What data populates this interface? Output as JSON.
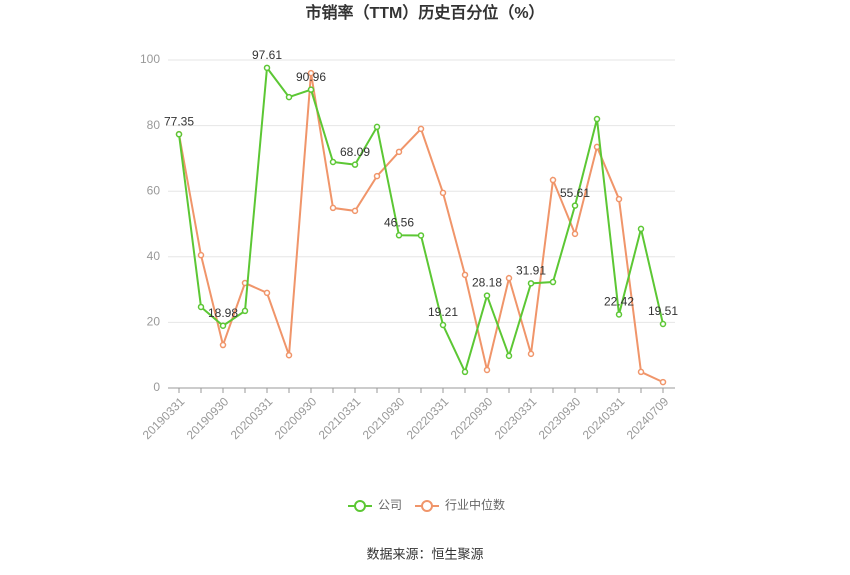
{
  "chart_data": {
    "type": "line",
    "title": "市销率（TTM）历史百分位（%）",
    "categories": [
      "20190331",
      null,
      "20190930",
      null,
      "20200331",
      null,
      "20200930",
      null,
      "20210331",
      null,
      "20210930",
      null,
      "20220331",
      null,
      "20220930",
      null,
      "20230331",
      null,
      "20230930",
      null,
      "20240331",
      null,
      "20240709"
    ],
    "series": [
      {
        "name": "公司",
        "color": "#5cc734",
        "values": [
          77.35,
          24.7,
          18.98,
          23.5,
          97.61,
          88.7,
          90.96,
          68.9,
          68.09,
          79.6,
          46.56,
          46.5,
          19.21,
          4.9,
          28.18,
          9.8,
          31.91,
          32.3,
          55.61,
          82,
          22.42,
          48.5,
          19.51
        ],
        "value_labels": [
          "77.35",
          null,
          "18.98",
          null,
          "97.61",
          null,
          "90.96",
          null,
          "68.09",
          null,
          "46.56",
          null,
          "19.21",
          null,
          "28.18",
          null,
          "31.91",
          null,
          "55.61",
          null,
          "22.42",
          null,
          "19.51"
        ]
      },
      {
        "name": "行业中位数",
        "color": "#f0956a",
        "values": [
          77.4,
          40.5,
          13.1,
          32,
          29,
          10,
          96,
          54.9,
          54,
          64.6,
          72,
          79,
          59.5,
          34.5,
          5.5,
          33.5,
          10.4,
          63.4,
          47,
          73.5,
          57.6,
          4.9,
          1.8
        ]
      }
    ],
    "ylim": [
      0,
      100
    ],
    "yticks": [
      0,
      20,
      40,
      60,
      80,
      100
    ],
    "grid": true,
    "source": "数据来源：恒生聚源"
  }
}
